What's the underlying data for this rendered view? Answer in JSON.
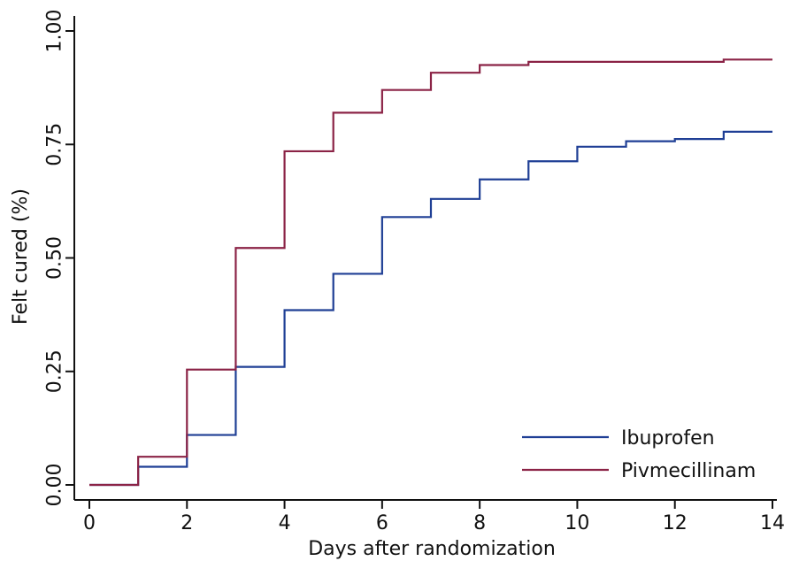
{
  "chart_data": {
    "type": "line",
    "step": true,
    "title": "",
    "xlabel": "Days after randomization",
    "ylabel": "Felt cured (%)",
    "xlim": [
      0,
      14
    ],
    "ylim": [
      0,
      1
    ],
    "xticks": [
      0,
      2,
      4,
      6,
      8,
      10,
      12,
      14
    ],
    "xtick_labels": [
      "0",
      "2",
      "4",
      "6",
      "8",
      "10",
      "12",
      "14"
    ],
    "yticks": [
      0,
      0.25,
      0.5,
      0.75,
      1
    ],
    "ytick_labels": [
      "0.00",
      "0.25",
      "0.50",
      "0.75",
      "1.00"
    ],
    "grid": false,
    "legend_position": "bottom-right",
    "series": [
      {
        "name": "Ibuprofen",
        "color": "#1f3f95",
        "x": [
          0,
          1,
          2,
          3,
          4,
          5,
          6,
          7,
          8,
          9,
          10,
          11,
          12,
          13,
          14
        ],
        "values": [
          0,
          0.04,
          0.11,
          0.26,
          0.385,
          0.465,
          0.59,
          0.63,
          0.673,
          0.713,
          0.745,
          0.757,
          0.762,
          0.778,
          0.778
        ]
      },
      {
        "name": "Pivmecillinam",
        "color": "#8b2346",
        "x": [
          0,
          1,
          2,
          3,
          4,
          5,
          6,
          7,
          8,
          9,
          10,
          11,
          12,
          13,
          14
        ],
        "values": [
          0,
          0.062,
          0.254,
          0.522,
          0.735,
          0.82,
          0.87,
          0.908,
          0.925,
          0.932,
          0.932,
          0.932,
          0.932,
          0.937,
          0.937
        ]
      }
    ]
  }
}
